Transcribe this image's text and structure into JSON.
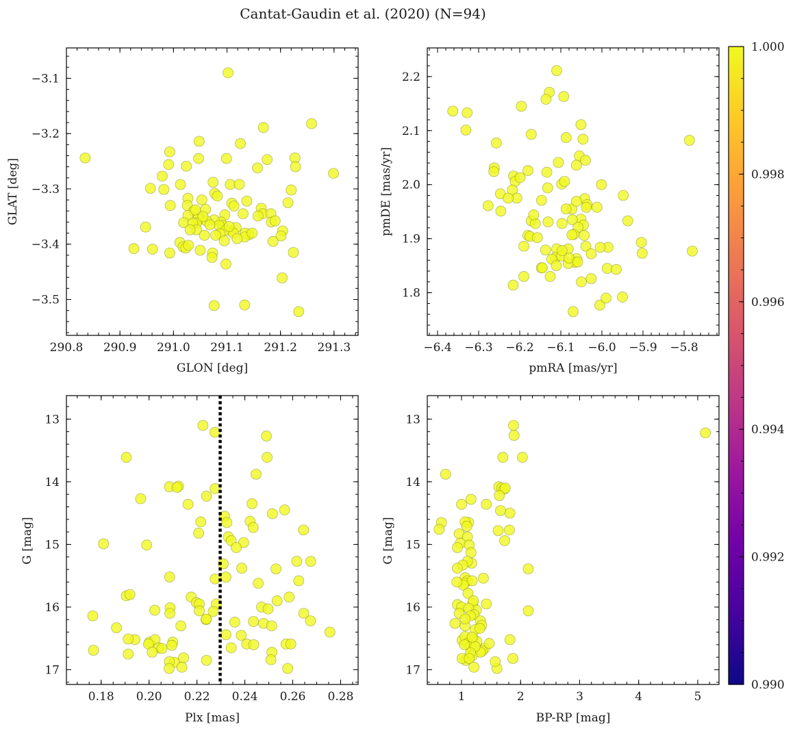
{
  "figure": {
    "title": "Cantat-Gaudin et al. (2020) (N=94)"
  },
  "colors": {
    "point_fill": "#f0f921",
    "point_edge": "#8a8a2a",
    "reference_line": "#000000"
  },
  "chart_data": [
    {
      "id": "glon-glat",
      "type": "scatter",
      "title": "",
      "xlabel": "GLON [deg]",
      "ylabel": "GLAT [deg]",
      "xlim": [
        290.8,
        291.345
      ],
      "ylim": [
        -3.565,
        -3.045
      ],
      "xticks": [
        290.8,
        290.9,
        291.0,
        291.1,
        291.2,
        291.3
      ],
      "xtick_labels": [
        "290.8",
        "290.9",
        "291.0",
        "291.1",
        "291.2",
        "291.3"
      ],
      "xminor": 0.02,
      "yticks": [
        -3.1,
        -3.2,
        -3.3,
        -3.4,
        -3.5
      ],
      "ytick_labels": [
        "−3.1",
        "−3.2",
        "−3.3",
        "−3.4",
        "−3.5"
      ],
      "yminor": 0.02,
      "x": [
        290.835,
        291.102,
        291.258,
        291.168,
        291.048,
        291.125,
        291.227,
        290.993,
        291.175,
        290.991,
        291.047,
        291.099,
        291.228,
        291.157,
        290.979,
        291.299,
        291.024,
        291.074,
        291.22,
        291.106,
        291.123,
        290.957,
        291.013,
        290.982,
        290.994,
        291.077,
        291.027,
        291.053,
        291.109,
        291.137,
        291.082,
        291.164,
        291.026,
        291.167,
        291.06,
        291.038,
        291.13,
        291.182,
        291.027,
        291.049,
        291.096,
        291.046,
        291.019,
        291.089,
        291.076,
        291.113,
        291.158,
        291.062,
        291.183,
        291.043,
        291.092,
        291.085,
        291.036,
        291.108,
        291.117,
        291.097,
        291.204,
        291.141,
        291.134,
        291.087,
        291.201,
        291.043,
        291.133,
        291.079,
        291.186,
        291.012,
        291.018,
        291.023,
        291.05,
        291.095,
        290.948,
        290.926,
        290.961,
        291.028,
        291.058,
        290.993,
        291.073,
        291.072,
        291.098,
        291.224,
        291.203,
        291.076,
        291.133,
        291.234,
        291.055,
        291.041,
        291.068,
        291.112,
        291.104,
        291.147,
        291.119,
        291.031,
        291.19,
        291.214
      ],
      "y": [
        -3.244,
        -3.09,
        -3.182,
        -3.189,
        -3.214,
        -3.218,
        -3.244,
        -3.233,
        -3.247,
        -3.256,
        -3.245,
        -3.245,
        -3.26,
        -3.262,
        -3.277,
        -3.272,
        -3.259,
        -3.288,
        -3.302,
        -3.292,
        -3.292,
        -3.299,
        -3.292,
        -3.301,
        -3.33,
        -3.308,
        -3.317,
        -3.32,
        -3.326,
        -3.322,
        -3.313,
        -3.335,
        -3.33,
        -3.345,
        -3.337,
        -3.34,
        -3.345,
        -3.345,
        -3.348,
        -3.355,
        -3.347,
        -3.353,
        -3.361,
        -3.36,
        -3.356,
        -3.331,
        -3.349,
        -3.358,
        -3.36,
        -3.362,
        -3.366,
        -3.366,
        -3.362,
        -3.376,
        -3.37,
        -3.375,
        -3.376,
        -3.383,
        -3.38,
        -3.381,
        -3.385,
        -3.374,
        -3.387,
        -3.384,
        -3.395,
        -3.397,
        -3.405,
        -3.407,
        -3.411,
        -3.394,
        -3.369,
        -3.408,
        -3.409,
        -3.402,
        -3.384,
        -3.416,
        -3.416,
        -3.424,
        -3.436,
        -3.415,
        -3.461,
        -3.511,
        -3.51,
        -3.522,
        -3.35,
        -3.338,
        -3.365,
        -3.38,
        -3.368,
        -3.38,
        -3.39,
        -3.374,
        -3.358,
        -3.325
      ]
    },
    {
      "id": "pmra-pmde",
      "type": "scatter",
      "title": "",
      "xlabel": "pmRA [mas/yr]",
      "ylabel": "pmDE [mas/yr]",
      "xlim": [
        -6.425,
        -5.715
      ],
      "ylim": [
        1.721,
        2.253
      ],
      "xticks": [
        -6.4,
        -6.3,
        -6.2,
        -6.1,
        -6.0,
        -5.9,
        -5.8
      ],
      "xtick_labels": [
        "−6.4",
        "−6.3",
        "−6.2",
        "−6.1",
        "−6.0",
        "−5.9",
        "−5.8"
      ],
      "xminor": 0.02,
      "yticks": [
        1.8,
        1.9,
        2.0,
        2.1,
        2.2
      ],
      "ytick_labels": [
        "1.8",
        "1.9",
        "2.0",
        "2.1",
        "2.2"
      ],
      "yminor": 0.02,
      "x": [
        -6.11,
        -6.128,
        -6.363,
        -6.328,
        -6.331,
        -6.196,
        -6.136,
        -6.093,
        -6.051,
        -6.172,
        -6.087,
        -6.257,
        -6.262,
        -6.263,
        -6.046,
        -6.055,
        -6.04,
        -6.247,
        -6.215,
        -6.211,
        -6.199,
        -6.106,
        -6.134,
        -6.042,
        -6.062,
        -6.051,
        -6.098,
        -6.091,
        -6.132,
        -6.147,
        -6.218,
        -6.207,
        -6.18,
        -6.073,
        -6.062,
        -6.036,
        -6.038,
        -6.072,
        -6.001,
        -6.012,
        -6.228,
        -6.277,
        -6.246,
        -6.172,
        -6.162,
        -5.948,
        -5.985,
        -5.937,
        -6.18,
        -6.087,
        -6.166,
        -6.131,
        -6.097,
        -6.045,
        -6.058,
        -6.043,
        -6.068,
        -6.073,
        -6.004,
        -6.039,
        -6.11,
        -6.19,
        -6.175,
        -6.157,
        -6.113,
        -6.098,
        -6.137,
        -6.082,
        -6.122,
        -6.097,
        -6.147,
        -6.026,
        -6.062,
        -6.065,
        -6.082,
        -5.987,
        -6.111,
        -6.145,
        -6.05,
        -6.08,
        -6.059,
        -6.126,
        -6.026,
        -5.904,
        -5.902,
        -5.965,
        -5.787,
        -5.78,
        -5.95,
        -6.005,
        -6.07,
        -5.99,
        -6.19,
        -6.216
      ],
      "y": [
        2.211,
        2.171,
        2.136,
        2.133,
        2.101,
        2.145,
        2.158,
        2.163,
        2.111,
        2.093,
        2.087,
        2.077,
        2.031,
        2.024,
        2.084,
        2.053,
        2.045,
        1.983,
        2.016,
        2.006,
        2.013,
        2.041,
        2.023,
        1.974,
        2.036,
        1.936,
        2.001,
        2.006,
        1.994,
        1.971,
        1.99,
        1.975,
        2.026,
        1.955,
        1.969,
        1.963,
        1.958,
        1.935,
        2.0,
        1.958,
        1.975,
        1.961,
        1.951,
        1.933,
        1.928,
        1.98,
        1.884,
        1.933,
        1.906,
        1.955,
        1.944,
        1.931,
        1.928,
        1.925,
        1.921,
        1.906,
        1.908,
        1.907,
        1.884,
        1.886,
        1.881,
        1.886,
        1.904,
        1.902,
        1.865,
        1.868,
        1.879,
        1.881,
        1.862,
        1.878,
        1.846,
        1.872,
        1.863,
        1.856,
        1.854,
        1.845,
        1.85,
        1.846,
        1.82,
        1.864,
        1.857,
        1.83,
        1.826,
        1.893,
        1.873,
        1.843,
        2.082,
        1.877,
        1.792,
        1.777,
        1.765,
        1.79,
        1.83,
        1.814
      ]
    },
    {
      "id": "plx-g",
      "type": "scatter",
      "title": "",
      "xlabel": "Plx [mas]",
      "ylabel": "G [mag]",
      "xlim": [
        0.1655,
        0.2873
      ],
      "ylim": [
        17.235,
        12.625
      ],
      "xticks": [
        0.18,
        0.2,
        0.22,
        0.24,
        0.26,
        0.28
      ],
      "xtick_labels": [
        "0.18",
        "0.20",
        "0.22",
        "0.24",
        "0.26",
        "0.28"
      ],
      "xminor": 0.005,
      "yticks": [
        13,
        14,
        15,
        16,
        17
      ],
      "ytick_labels": [
        "13",
        "14",
        "15",
        "16",
        "17"
      ],
      "yminor": 0.2,
      "reference_line": {
        "axis": "x",
        "value": 0.2297,
        "style": "dotted"
      },
      "x": [
        0.2225,
        0.2275,
        0.249,
        0.1905,
        0.2493,
        0.2447,
        0.1965,
        0.2085,
        0.2123,
        0.224,
        0.2276,
        0.2117,
        0.2315,
        0.243,
        0.2566,
        0.2325,
        0.2515,
        0.2163,
        0.2216,
        0.2207,
        0.2331,
        0.2645,
        0.181,
        0.199,
        0.2395,
        0.2343,
        0.2422,
        0.2435,
        0.2617,
        0.2675,
        0.231,
        0.2321,
        0.2387,
        0.2276,
        0.253,
        0.2086,
        0.2364,
        0.2625,
        0.2456,
        0.2585,
        0.1905,
        0.192,
        0.2176,
        0.2198,
        0.2535,
        0.221,
        0.2088,
        0.2281,
        0.2238,
        0.247,
        0.2024,
        0.2087,
        0.221,
        0.2646,
        0.1765,
        0.2436,
        0.2478,
        0.2239,
        0.2268,
        0.2358,
        0.2512,
        0.2133,
        0.2674,
        0.1864,
        0.2321,
        0.2385,
        0.2099,
        0.2408,
        0.2437,
        0.1941,
        0.1913,
        0.2002,
        0.2025,
        0.204,
        0.1998,
        0.2513,
        0.2572,
        0.2592,
        0.2106,
        0.2013,
        0.2095,
        0.2054,
        0.2144,
        0.2343,
        0.2755,
        0.1913,
        0.1768,
        0.2085,
        0.2509,
        0.224,
        0.2084,
        0.2579,
        0.2137,
        0.2497
      ],
      "y": [
        13.1,
        13.21,
        13.27,
        13.61,
        13.61,
        13.88,
        14.27,
        14.08,
        14.07,
        14.23,
        14.11,
        14.09,
        14.55,
        14.35,
        14.45,
        14.65,
        14.51,
        14.36,
        14.64,
        14.82,
        14.88,
        14.77,
        14.99,
        15.01,
        14.97,
        14.94,
        14.63,
        14.73,
        15.27,
        15.27,
        15.31,
        15.52,
        15.38,
        15.55,
        15.39,
        15.52,
        15.05,
        15.58,
        15.62,
        15.84,
        15.82,
        15.8,
        15.84,
        15.93,
        15.9,
        15.95,
        16.01,
        15.95,
        16.2,
        16.0,
        16.05,
        16.1,
        16.06,
        16.1,
        16.14,
        16.23,
        16.26,
        16.19,
        16.07,
        16.24,
        16.3,
        16.3,
        16.22,
        16.33,
        16.44,
        16.45,
        16.56,
        16.59,
        16.6,
        16.52,
        16.51,
        16.56,
        16.52,
        16.65,
        16.59,
        16.72,
        16.59,
        16.59,
        16.88,
        16.72,
        16.61,
        16.66,
        16.81,
        16.65,
        16.4,
        16.75,
        16.69,
        16.87,
        16.84,
        16.85,
        16.98,
        16.98,
        16.96,
        16.03
      ]
    },
    {
      "id": "bprp-g",
      "type": "scatter",
      "title": "",
      "xlabel": "BP-RP [mag]",
      "ylabel": "G [mag]",
      "xlim": [
        0.42,
        5.36
      ],
      "ylim": [
        17.235,
        12.625
      ],
      "xticks": [
        1,
        2,
        3,
        4,
        5
      ],
      "xtick_labels": [
        "1",
        "2",
        "3",
        "4",
        "5"
      ],
      "xminor": 0.2,
      "yticks": [
        13,
        14,
        15,
        16,
        17
      ],
      "ytick_labels": [
        "13",
        "14",
        "15",
        "16",
        "17"
      ],
      "yminor": 0.2,
      "x": [
        5.13,
        1.88,
        1.89,
        1.7,
        2.03,
        0.73,
        1.63,
        1.68,
        1.72,
        1.74,
        1.64,
        1.16,
        1.0,
        1.42,
        1.82,
        1.66,
        0.66,
        0.62,
        1.12,
        1.62,
        1.06,
        1.81,
        1.73,
        1.09,
        0.96,
        1.1,
        0.98,
        1.13,
        0.93,
        1.16,
        1.17,
        1.1,
        1.02,
        1.37,
        2.13,
        1.06,
        0.93,
        1.1,
        1.05,
        1.18,
        1.03,
        0.92,
        1.11,
        1.19,
        1.2,
        2.13,
        1.25,
        0.93,
        1.42,
        1.0,
        1.12,
        1.21,
        1.32,
        1.15,
        0.89,
        1.34,
        0.96,
        1.23,
        1.06,
        1.31,
        1.2,
        1.01,
        1.06,
        1.1,
        1.26,
        1.39,
        1.82,
        1.15,
        1.35,
        1.47,
        1.32,
        1.07,
        1.23,
        1.18,
        1.15,
        1.01,
        1.18,
        1.13,
        1.87,
        1.05,
        1.6,
        1.21,
        1.57,
        1.06
      ],
      "y": [
        13.22,
        13.1,
        13.26,
        13.61,
        13.61,
        13.88,
        14.08,
        14.1,
        14.12,
        14.1,
        14.22,
        14.28,
        14.36,
        14.36,
        14.5,
        14.46,
        14.65,
        14.76,
        14.65,
        14.78,
        14.64,
        14.77,
        14.94,
        14.71,
        14.83,
        14.88,
        14.98,
        15.01,
        15.05,
        15.13,
        15.3,
        15.27,
        15.33,
        15.54,
        15.39,
        15.53,
        15.38,
        15.58,
        15.62,
        15.58,
        15.65,
        15.6,
        15.78,
        15.94,
        15.9,
        16.06,
        16.05,
        15.96,
        15.95,
        16.0,
        16.02,
        16.12,
        16.22,
        16.14,
        16.26,
        16.29,
        16.1,
        16.36,
        16.3,
        16.34,
        16.51,
        16.53,
        16.47,
        16.58,
        16.55,
        16.66,
        16.52,
        16.63,
        16.7,
        16.58,
        16.72,
        16.85,
        16.63,
        16.78,
        16.73,
        16.82,
        16.48,
        16.82,
        16.82,
        16.6,
        16.98,
        16.96,
        16.87,
        16.19
      ]
    }
  ],
  "colorbar": {
    "vmin": 0.99,
    "vmax": 1.0,
    "ticks": [
      0.99,
      0.992,
      0.994,
      0.996,
      0.998,
      1.0
    ],
    "tick_labels": [
      "0.990",
      "0.992",
      "0.994",
      "0.996",
      "0.998",
      "1.000"
    ],
    "minor": 0.0005,
    "colormap": "plasma",
    "colormap_stops": [
      "#0d0887",
      "#46039f",
      "#7201a8",
      "#9c179e",
      "#bd3786",
      "#d8576b",
      "#ed7953",
      "#fb9f3a",
      "#fdca26",
      "#f0f921"
    ]
  }
}
